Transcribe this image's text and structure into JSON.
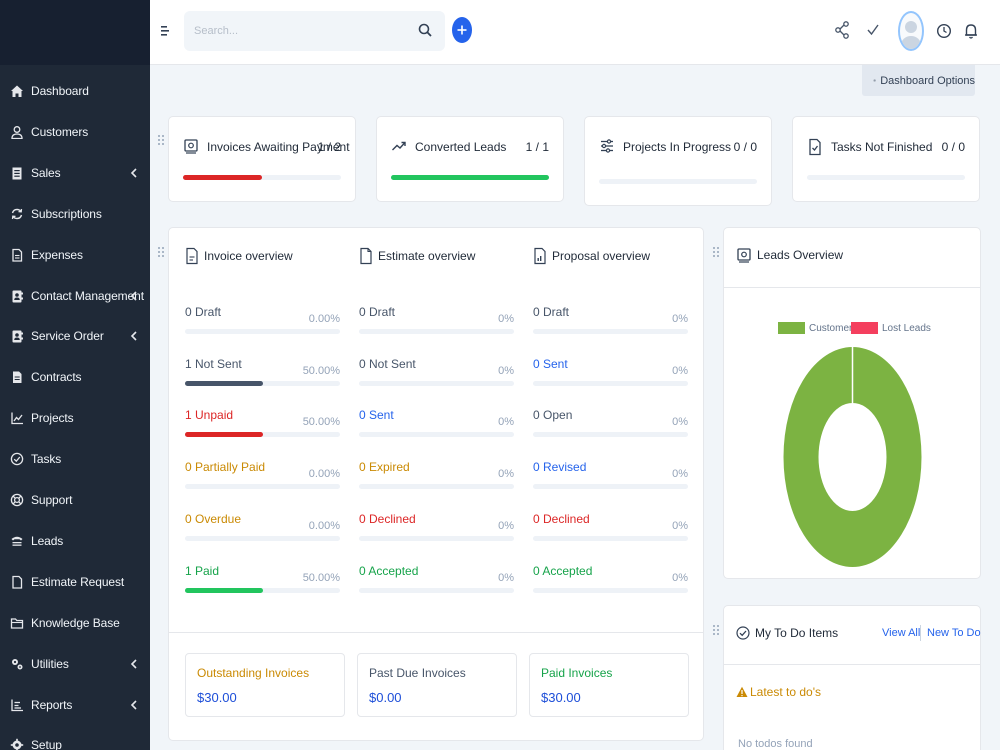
{
  "sidebar": {
    "items": [
      {
        "label": "Dashboard",
        "icon": "home-icon",
        "has_submenu": false
      },
      {
        "label": "Customers",
        "icon": "user-icon",
        "has_submenu": false
      },
      {
        "label": "Sales",
        "icon": "receipt-icon",
        "has_submenu": true
      },
      {
        "label": "Subscriptions",
        "icon": "refresh-icon",
        "has_submenu": false
      },
      {
        "label": "Expenses",
        "icon": "document-icon",
        "has_submenu": false
      },
      {
        "label": "Contact Management",
        "icon": "contact-book-icon",
        "has_submenu": true
      },
      {
        "label": "Service Order",
        "icon": "contact-book-icon",
        "has_submenu": true
      },
      {
        "label": "Contracts",
        "icon": "contract-icon",
        "has_submenu": false
      },
      {
        "label": "Projects",
        "icon": "chart-icon",
        "has_submenu": false
      },
      {
        "label": "Tasks",
        "icon": "check-circle-icon",
        "has_submenu": false
      },
      {
        "label": "Support",
        "icon": "lifebuoy-icon",
        "has_submenu": false
      },
      {
        "label": "Leads",
        "icon": "tty-icon",
        "has_submenu": false
      },
      {
        "label": "Estimate Request",
        "icon": "file-icon",
        "has_submenu": false
      },
      {
        "label": "Knowledge Base",
        "icon": "folder-icon",
        "has_submenu": false
      },
      {
        "label": "Utilities",
        "icon": "cogs-icon",
        "has_submenu": true
      },
      {
        "label": "Reports",
        "icon": "line-chart-icon",
        "has_submenu": true
      },
      {
        "label": "Setup",
        "icon": "gear-icon",
        "has_submenu": false
      }
    ]
  },
  "header": {
    "search_placeholder": "Search..."
  },
  "dashboard_options_label": "Dashboard Options",
  "stats": [
    {
      "title": "Invoices Awaiting Payment",
      "count": "1 / 2",
      "fraction": 0.5,
      "color": "#dc2626",
      "icon": "invoice-icon"
    },
    {
      "title": "Converted Leads",
      "count": "1 / 1",
      "fraction": 1.0,
      "color": "#22c55e",
      "icon": "trend-up-icon"
    },
    {
      "title": "Projects In Progress",
      "count": "0 / 0",
      "fraction": 0,
      "color": "#64748b",
      "icon": "sliders-icon"
    },
    {
      "title": "Tasks Not Finished",
      "count": "0 / 0",
      "fraction": 0,
      "color": "#64748b",
      "icon": "task-file-icon"
    }
  ],
  "invoice_overview": {
    "title": "Invoice overview",
    "rows": [
      {
        "label": "0 Draft",
        "pct": "0.00%",
        "value": 0,
        "color": "#475569",
        "tone": "gray"
      },
      {
        "label": "1 Not Sent",
        "pct": "50.00%",
        "value": 0.5,
        "color": "#475569",
        "tone": "gray"
      },
      {
        "label": "1 Unpaid",
        "pct": "50.00%",
        "value": 0.5,
        "color": "#dc2626",
        "tone": "red"
      },
      {
        "label": "0 Partially Paid",
        "pct": "0.00%",
        "value": 0,
        "color": "#ca8a04",
        "tone": "orange"
      },
      {
        "label": "0 Overdue",
        "pct": "0.00%",
        "value": 0,
        "color": "#ca8a04",
        "tone": "orange"
      },
      {
        "label": "1 Paid",
        "pct": "50.00%",
        "value": 0.5,
        "color": "#22c55e",
        "tone": "green"
      }
    ]
  },
  "estimate_overview": {
    "title": "Estimate overview",
    "rows": [
      {
        "label": "0 Draft",
        "pct": "0%",
        "value": 0,
        "color": "#475569",
        "tone": "gray"
      },
      {
        "label": "0 Not Sent",
        "pct": "0%",
        "value": 0,
        "color": "#475569",
        "tone": "gray"
      },
      {
        "label": "0 Sent",
        "pct": "0%",
        "value": 0,
        "color": "#2563eb",
        "tone": "blue"
      },
      {
        "label": "0 Expired",
        "pct": "0%",
        "value": 0,
        "color": "#ca8a04",
        "tone": "orange"
      },
      {
        "label": "0 Declined",
        "pct": "0%",
        "value": 0,
        "color": "#dc2626",
        "tone": "red"
      },
      {
        "label": "0 Accepted",
        "pct": "0%",
        "value": 0,
        "color": "#16a34a",
        "tone": "green"
      }
    ]
  },
  "proposal_overview": {
    "title": "Proposal overview",
    "rows": [
      {
        "label": "0 Draft",
        "pct": "0%",
        "value": 0,
        "color": "#475569",
        "tone": "gray"
      },
      {
        "label": "0 Sent",
        "pct": "0%",
        "value": 0,
        "color": "#2563eb",
        "tone": "blue"
      },
      {
        "label": "0 Open",
        "pct": "0%",
        "value": 0,
        "color": "#475569",
        "tone": "gray"
      },
      {
        "label": "0 Revised",
        "pct": "0%",
        "value": 0,
        "color": "#2563eb",
        "tone": "blue"
      },
      {
        "label": "0 Declined",
        "pct": "0%",
        "value": 0,
        "color": "#dc2626",
        "tone": "red"
      },
      {
        "label": "0 Accepted",
        "pct": "0%",
        "value": 0,
        "color": "#16a34a",
        "tone": "green"
      }
    ]
  },
  "totals": [
    {
      "label": "Outstanding Invoices",
      "value": "$30.00",
      "tone": "orange"
    },
    {
      "label": "Past Due Invoices",
      "value": "$0.00",
      "tone": "gray"
    },
    {
      "label": "Paid Invoices",
      "value": "$30.00",
      "tone": "green"
    }
  ],
  "leads_overview": {
    "title": "Leads Overview",
    "legend": [
      {
        "label": "Customer",
        "color": "#7cb342"
      },
      {
        "label": "Lost Leads",
        "color": "#f43f5e"
      }
    ],
    "chart_data": {
      "type": "pie",
      "labels": [
        "Customer",
        "Lost Leads"
      ],
      "values": [
        1,
        0
      ],
      "colors": [
        "#7cb342",
        "#f43f5e"
      ]
    }
  },
  "todo": {
    "title": "My To Do Items",
    "view_all": "View All",
    "new_todo": "New To Do",
    "latest_label": "Latest to do's",
    "empty_text": "No todos found"
  }
}
